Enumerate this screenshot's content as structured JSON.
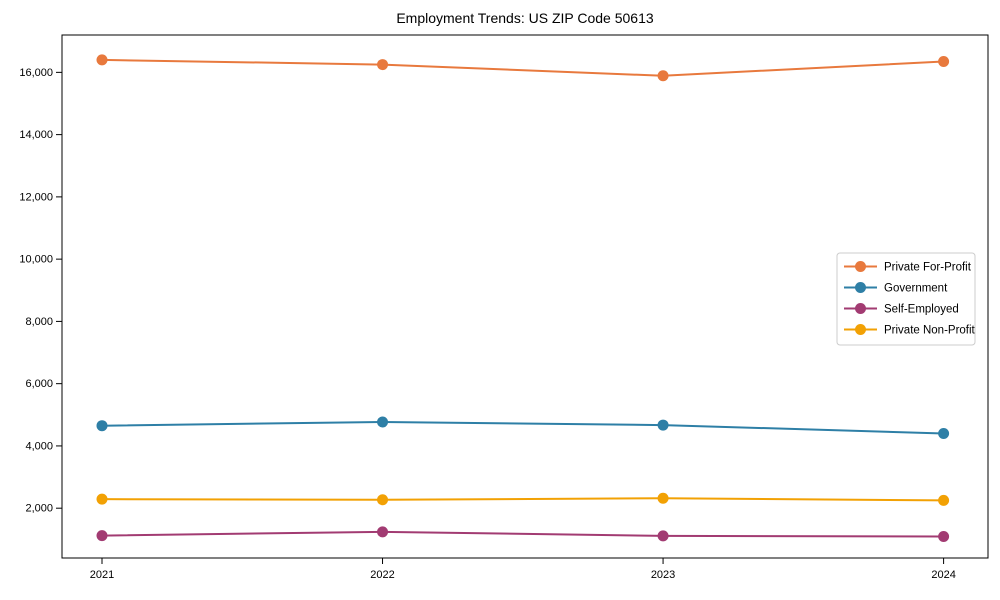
{
  "figure": {
    "title": "Employment Trends: US ZIP Code 50613"
  },
  "chart_data": {
    "type": "line",
    "title": "Employment Trends: US ZIP Code 50613",
    "x": [
      "2021",
      "2022",
      "2023",
      "2024"
    ],
    "series": [
      {
        "name": "Private For-Profit",
        "color": "#E8793D",
        "values": [
          16400,
          16250,
          15890,
          16350
        ]
      },
      {
        "name": "Government",
        "color": "#2E7FA6",
        "values": [
          4650,
          4770,
          4670,
          4400
        ]
      },
      {
        "name": "Self-Employed",
        "color": "#A23B72",
        "values": [
          1120,
          1240,
          1110,
          1090
        ]
      },
      {
        "name": "Private Non-Profit",
        "color": "#F2A104",
        "values": [
          2290,
          2270,
          2320,
          2250
        ]
      }
    ],
    "xlabel": "",
    "ylabel": "",
    "ylim": [
      400,
      17200
    ],
    "yticks": [
      2000,
      4000,
      6000,
      8000,
      10000,
      12000,
      14000,
      16000
    ],
    "grid": false,
    "legend_position": "center-right",
    "marker": "circle",
    "axis_color": "#000000",
    "tick_label_color": "#000000",
    "legend_border_color": "#cccccc",
    "background_color": "#ffffff"
  }
}
